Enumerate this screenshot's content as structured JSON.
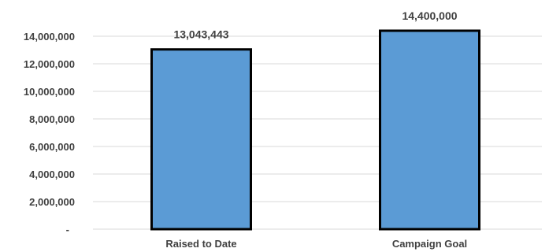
{
  "chart_data": {
    "type": "bar",
    "title": "",
    "categories": [
      "Raised to Date",
      "Campaign Goal"
    ],
    "values": [
      13043443,
      14400000
    ],
    "data_labels": [
      "13,043,443",
      "14,400,000"
    ],
    "xlabel": "",
    "ylabel": "",
    "ylim": [
      0,
      14000000
    ],
    "yticks": [
      0,
      2000000,
      4000000,
      6000000,
      8000000,
      10000000,
      12000000,
      14000000
    ],
    "ytick_labels": [
      "-",
      "2,000,000",
      "4,000,000",
      "6,000,000",
      "8,000,000",
      "10,000,000",
      "12,000,000",
      "14,000,000"
    ],
    "grid": true,
    "legend": "none",
    "colors": {
      "bar_fill": "#5b9bd5",
      "bar_outline": "#000000",
      "grid": "#d9d9d9",
      "text": "#404040"
    }
  }
}
